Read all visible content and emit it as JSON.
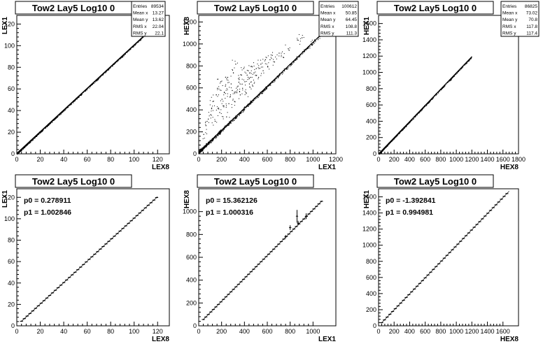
{
  "chart_data": [
    {
      "type": "scatter",
      "title": "Tow2 Lay5 Log10 0",
      "xlabel": "LEX8",
      "ylabel": "LEX1",
      "xlim": [
        0,
        130
      ],
      "ylim": [
        0,
        128
      ],
      "xticks": [
        0,
        20,
        40,
        60,
        80,
        100,
        120
      ],
      "yticks": [
        0,
        20,
        40,
        60,
        80,
        100,
        120
      ],
      "stats": [
        {
          "label": "Entries",
          "value": "89534"
        },
        {
          "label": "Mean x",
          "value": "13.27"
        },
        {
          "label": "Mean y",
          "value": "13.62"
        },
        {
          "label": "RMS x",
          "value": "22.04"
        },
        {
          "label": "RMS y",
          "value": "22.1"
        }
      ],
      "band": {
        "slope": 1.003,
        "intercept": 0.28,
        "x_range": [
          0,
          122
        ],
        "spread": 0.8
      },
      "scatter_points": []
    },
    {
      "type": "scatter",
      "title": "Tow2 Lay5 Log10 0",
      "xlabel": "LEX1",
      "ylabel": "HEX8",
      "xlim": [
        0,
        1200
      ],
      "ylim": [
        0,
        1260
      ],
      "xticks": [
        0,
        200,
        400,
        600,
        800,
        1000,
        1200
      ],
      "yticks": [
        0,
        200,
        400,
        600,
        800,
        1000,
        1200
      ],
      "stats": [
        {
          "label": "Entries",
          "value": "100612"
        },
        {
          "label": "Mean x",
          "value": "50.85"
        },
        {
          "label": "Mean y",
          "value": "64.45"
        },
        {
          "label": "RMS x",
          "value": "108.8"
        },
        {
          "label": "RMS y",
          "value": "111.3"
        }
      ],
      "band": {
        "slope": 1.0,
        "intercept": 15,
        "x_range": [
          0,
          1100
        ],
        "spread": 14
      },
      "scatter_points": [
        [
          40,
          180
        ],
        [
          60,
          260
        ],
        [
          80,
          320
        ],
        [
          100,
          360
        ],
        [
          110,
          420
        ],
        [
          120,
          480
        ],
        [
          140,
          300
        ],
        [
          150,
          540
        ],
        [
          160,
          600
        ],
        [
          170,
          420
        ],
        [
          180,
          380
        ],
        [
          190,
          660
        ],
        [
          200,
          500
        ],
        [
          210,
          440
        ],
        [
          220,
          560
        ],
        [
          230,
          620
        ],
        [
          240,
          340
        ],
        [
          250,
          700
        ],
        [
          260,
          460
        ],
        [
          270,
          520
        ],
        [
          280,
          640
        ],
        [
          290,
          580
        ],
        [
          300,
          740
        ],
        [
          310,
          480
        ],
        [
          320,
          820
        ],
        [
          330,
          560
        ],
        [
          340,
          620
        ],
        [
          350,
          680
        ],
        [
          360,
          540
        ],
        [
          370,
          720
        ],
        [
          380,
          600
        ],
        [
          390,
          780
        ],
        [
          400,
          660
        ],
        [
          410,
          560
        ],
        [
          420,
          720
        ],
        [
          430,
          760
        ],
        [
          440,
          640
        ],
        [
          450,
          700
        ],
        [
          460,
          800
        ],
        [
          470,
          620
        ],
        [
          480,
          740
        ],
        [
          500,
          780
        ],
        [
          520,
          700
        ],
        [
          540,
          820
        ],
        [
          560,
          760
        ],
        [
          580,
          860
        ],
        [
          600,
          800
        ],
        [
          620,
          860
        ],
        [
          640,
          900
        ],
        [
          660,
          840
        ],
        [
          700,
          920
        ],
        [
          740,
          880
        ],
        [
          780,
          960
        ],
        [
          860,
          1040
        ],
        [
          900,
          1060
        ],
        [
          1000,
          1020
        ]
      ]
    },
    {
      "type": "scatter",
      "title": "Tow2 Lay5 Log10 0",
      "xlabel": "HEX8",
      "ylabel": "HEX1",
      "xlim": [
        0,
        1800
      ],
      "ylim": [
        0,
        1700
      ],
      "xticks": [
        0,
        200,
        400,
        600,
        800,
        1000,
        1200,
        1400,
        1600,
        1800
      ],
      "yticks": [
        0,
        200,
        400,
        600,
        800,
        1000,
        1200,
        1400,
        1600
      ],
      "stats": [
        {
          "label": "Entries",
          "value": "86825"
        },
        {
          "label": "Mean x",
          "value": "73.02"
        },
        {
          "label": "Mean y",
          "value": "70.8"
        },
        {
          "label": "RMS x",
          "value": "117.8"
        },
        {
          "label": "RMS y",
          "value": "117.4"
        }
      ],
      "band": {
        "slope": 0.995,
        "intercept": -1.4,
        "x_range": [
          0,
          1200
        ],
        "spread": 10
      },
      "scatter_points": []
    },
    {
      "type": "line",
      "title": "Tow2 Lay5 Log10 0",
      "xlabel": "LEX8",
      "ylabel": "LEX1",
      "xlim": [
        0,
        130
      ],
      "ylim": [
        0,
        128
      ],
      "xticks": [
        0,
        20,
        40,
        60,
        80,
        100,
        120
      ],
      "yticks": [
        0,
        20,
        40,
        60,
        80,
        100,
        120
      ],
      "fit": [
        {
          "label": "p0 = 0.278911"
        },
        {
          "label": "p1 = 1.002846"
        }
      ],
      "profile": {
        "slope": 1.002846,
        "intercept": 0.278911,
        "x_range": [
          4,
          120
        ],
        "step": 2.4
      },
      "error_points": []
    },
    {
      "type": "line",
      "title": "Tow2 Lay5 Log10 0",
      "xlabel": "LEX1",
      "ylabel": "HEX8",
      "xlim": [
        0,
        1200
      ],
      "ylim": [
        0,
        1200
      ],
      "xticks": [
        0,
        200,
        400,
        600,
        800,
        1000
      ],
      "yticks": [
        0,
        200,
        400,
        600,
        800,
        1000
      ],
      "fit": [
        {
          "label": "p0 = 15.362126"
        },
        {
          "label": "p1 = 1.000316"
        }
      ],
      "profile": {
        "slope": 1.000316,
        "intercept": 15.362126,
        "x_range": [
          40,
          1080
        ],
        "step": 22
      },
      "error_points": [
        {
          "x": 760,
          "y": 780,
          "ex": 10,
          "ey": 15
        },
        {
          "x": 800,
          "y": 860,
          "ex": 10,
          "ey": 20
        },
        {
          "x": 860,
          "y": 960,
          "ex": 10,
          "ey": 55
        },
        {
          "x": 870,
          "y": 900,
          "ex": 10,
          "ey": 20
        },
        {
          "x": 940,
          "y": 960,
          "ex": 10,
          "ey": 25
        }
      ]
    },
    {
      "type": "line",
      "title": "Tow2 Lay5 Log10 0",
      "xlabel": "HEX8",
      "ylabel": "HEX1",
      "xlim": [
        0,
        1800
      ],
      "ylim": [
        0,
        1700
      ],
      "xticks": [
        0,
        200,
        400,
        600,
        800,
        1000,
        1200,
        1400,
        1600
      ],
      "yticks": [
        0,
        200,
        400,
        600,
        800,
        1000,
        1200,
        1400,
        1600
      ],
      "fit": [
        {
          "label": "p0 = -1.392841"
        },
        {
          "label": "p1 = 0.994981"
        }
      ],
      "profile": {
        "slope": 0.994981,
        "intercept": -1.392841,
        "x_range": [
          40,
          1680
        ],
        "step": 35
      },
      "error_points": []
    }
  ]
}
